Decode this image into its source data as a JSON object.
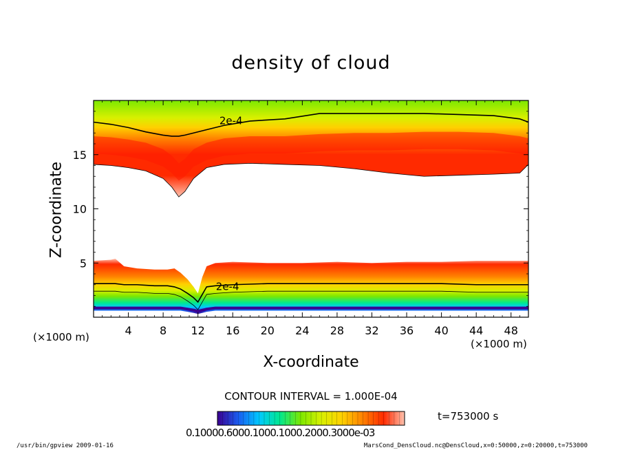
{
  "chart_data": {
    "type": "heatmap",
    "title": "density of cloud",
    "xlabel": "X-coordinate",
    "ylabel": "Z-coordinate",
    "x_unit": "(×1000 m)",
    "y_unit": "(×1000 m)",
    "xlim": [
      0,
      50
    ],
    "ylim": [
      0,
      20
    ],
    "x_ticks": [
      "4",
      "8",
      "12",
      "16",
      "20",
      "24",
      "28",
      "32",
      "36",
      "40",
      "44",
      "48"
    ],
    "y_ticks": [
      "5",
      "10",
      "15"
    ],
    "contour_label": "2e-4",
    "contour_interval_text": "CONTOUR INTERVAL = 1.000E-04",
    "time_label": "t=753000 s",
    "colorbar_tick_text": "0.10000.6000.1000.1000.2000.3000e-03",
    "colormap": [
      "#3a0090",
      "#1a5cf0",
      "#00c8ff",
      "#00e890",
      "#7ce800",
      "#d8f000",
      "#ffd000",
      "#ff8000",
      "#ff2a00",
      "#ffc2ae"
    ],
    "upper_layer": {
      "x": [
        0,
        2,
        4,
        6,
        8,
        9,
        9.8,
        10.5,
        11.5,
        13,
        15,
        18,
        22,
        26,
        30,
        34,
        38,
        42,
        46,
        49,
        50
      ],
      "bottom": [
        14.1,
        14.0,
        13.8,
        13.5,
        12.8,
        12.0,
        11.1,
        11.6,
        12.8,
        13.8,
        14.1,
        14.2,
        14.1,
        14.0,
        13.7,
        13.3,
        13.0,
        13.1,
        13.2,
        13.3,
        14.1
      ],
      "top_contour": [
        18.0,
        17.8,
        17.5,
        17.1,
        16.8,
        16.7,
        16.7,
        16.8,
        17.0,
        17.3,
        17.7,
        18.1,
        18.3,
        18.8,
        18.8,
        18.8,
        18.8,
        18.7,
        18.6,
        18.3,
        18.0
      ],
      "core": [
        16.0,
        15.9,
        15.7,
        15.4,
        14.8,
        14.2,
        13.5,
        13.9,
        14.8,
        15.4,
        15.8,
        16.0,
        16.0,
        16.2,
        16.3,
        16.3,
        16.4,
        16.4,
        16.3,
        16.0,
        15.8
      ]
    },
    "lower_layer": {
      "x": [
        0,
        2,
        2.5,
        3.5,
        5,
        7,
        8.5,
        9.3,
        10,
        10.8,
        11.5,
        12.0,
        12.5,
        13,
        14,
        16,
        20,
        24,
        28,
        32,
        36,
        40,
        44,
        48,
        50
      ],
      "top": [
        5.2,
        5.3,
        5.4,
        4.7,
        4.5,
        4.4,
        4.4,
        4.5,
        4.1,
        3.5,
        2.8,
        2.2,
        3.7,
        4.7,
        5.0,
        5.1,
        5.0,
        5.0,
        5.1,
        5.0,
        5.1,
        5.1,
        5.2,
        5.2,
        5.2
      ],
      "contour": [
        3.1,
        3.1,
        3.1,
        3.0,
        3.0,
        2.9,
        2.9,
        2.8,
        2.6,
        2.2,
        1.8,
        1.4,
        2.1,
        2.8,
        2.9,
        3.0,
        3.1,
        3.1,
        3.1,
        3.1,
        3.1,
        3.1,
        3.0,
        3.0,
        3.0
      ],
      "base": [
        0.6,
        0.6,
        0.6,
        0.6,
        0.6,
        0.6,
        0.6,
        0.6,
        0.6,
        0.5,
        0.4,
        0.3,
        0.4,
        0.5,
        0.6,
        0.6,
        0.6,
        0.6,
        0.6,
        0.6,
        0.6,
        0.6,
        0.6,
        0.6,
        0.6
      ]
    }
  },
  "footer": {
    "left": "/usr/bin/gpview  2009-01-16",
    "right": "MarsCond_DensCloud.nc@DensCloud,x=0:50000,z=0:20000,t=753000"
  }
}
